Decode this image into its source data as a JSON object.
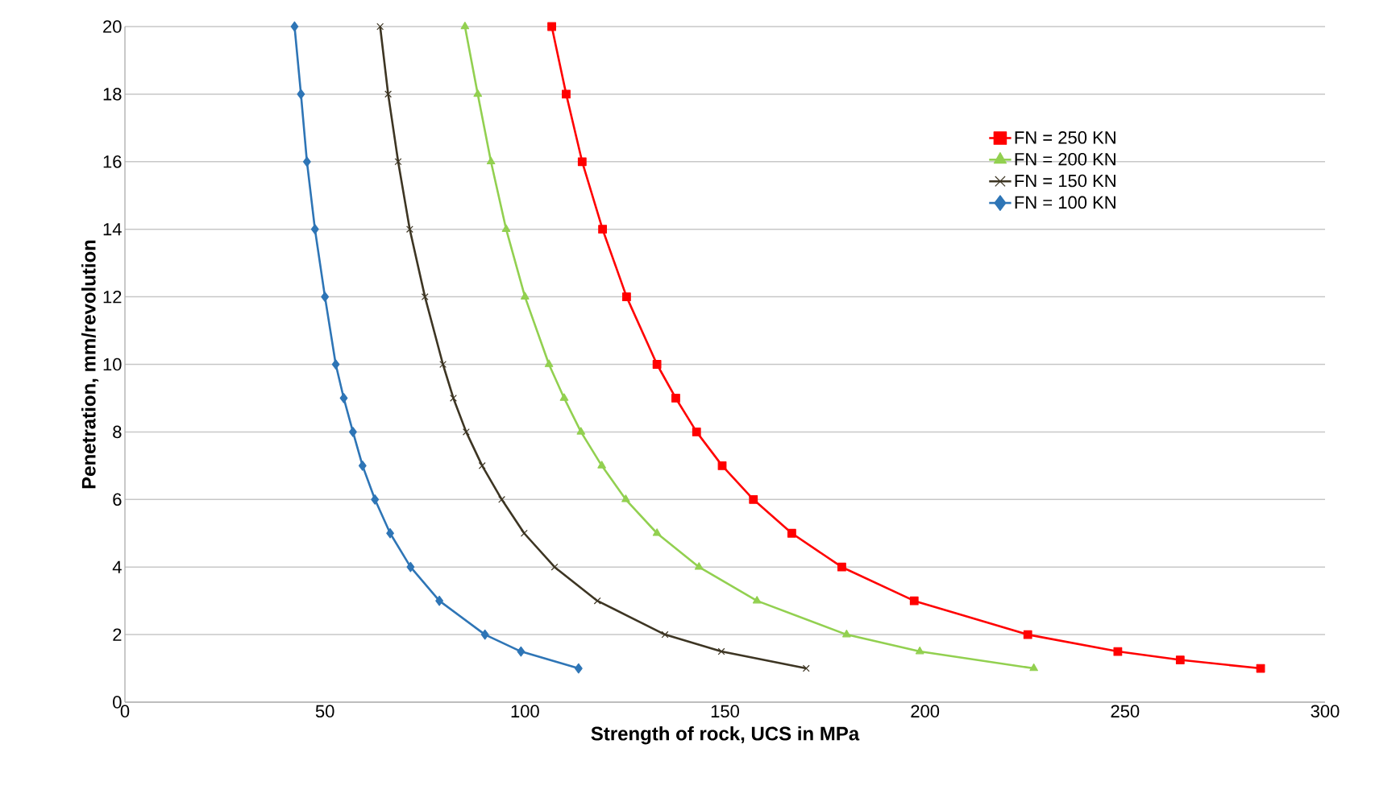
{
  "chart_data": {
    "type": "line",
    "xlabel": "Strength of rock, UCS in MPa",
    "ylabel": "Penetration, mm/revolution",
    "xlim": [
      0,
      300
    ],
    "ylim": [
      0,
      20
    ],
    "xticks": [
      0,
      50,
      100,
      150,
      200,
      250,
      300
    ],
    "yticks": [
      0,
      2,
      4,
      6,
      8,
      10,
      12,
      14,
      16,
      18,
      20
    ],
    "grid": "y",
    "legend": "top right",
    "line_style": "solid",
    "series": [
      {
        "name": "FN = 250 KN",
        "color": "#ff0000",
        "marker": "square",
        "x": [
          106.7,
          110.3,
          114.3,
          119.4,
          125.4,
          133,
          137.7,
          142.9,
          149.3,
          157.1,
          166.7,
          179.2,
          197.3,
          225.7,
          248.2,
          263.8,
          283.9
        ],
        "values": [
          20,
          18,
          16,
          14,
          12,
          10,
          9,
          8,
          7,
          6,
          5,
          4,
          3,
          2,
          1.5,
          1.25,
          1
        ]
      },
      {
        "name": "FN = 200 KN",
        "color": "#92d050",
        "marker": "triangle",
        "x": [
          85,
          88.2,
          91.5,
          95.3,
          100,
          106,
          109.8,
          114,
          119.2,
          125.2,
          133,
          143.5,
          158,
          180.4,
          198.7,
          227.2
        ],
        "values": [
          20,
          18,
          16,
          14,
          12,
          10,
          9,
          8,
          7,
          6,
          5,
          4,
          3,
          2,
          1.5,
          1
        ]
      },
      {
        "name": "FN = 150 KN",
        "color": "#3d3523",
        "marker": "cross",
        "x": [
          63.8,
          65.8,
          68.3,
          71.2,
          75,
          79.5,
          82.1,
          85.3,
          89.3,
          94.2,
          99.8,
          107.4,
          118.1,
          135,
          149.1,
          170.3
        ],
        "values": [
          20,
          18,
          16,
          14,
          12,
          10,
          9,
          8,
          7,
          6,
          5,
          4,
          3,
          2,
          1.5,
          1
        ]
      },
      {
        "name": "FN = 100 KN",
        "color": "#2e75b6",
        "marker": "diamond",
        "x": [
          42.4,
          44,
          45.5,
          47.5,
          50,
          52.7,
          54.7,
          57,
          59.4,
          62.5,
          66.3,
          71.4,
          78.6,
          90,
          99,
          113.4
        ],
        "values": [
          20,
          18,
          16,
          14,
          12,
          10,
          9,
          8,
          7,
          6,
          5,
          4,
          3,
          2,
          1.5,
          1
        ]
      }
    ]
  }
}
